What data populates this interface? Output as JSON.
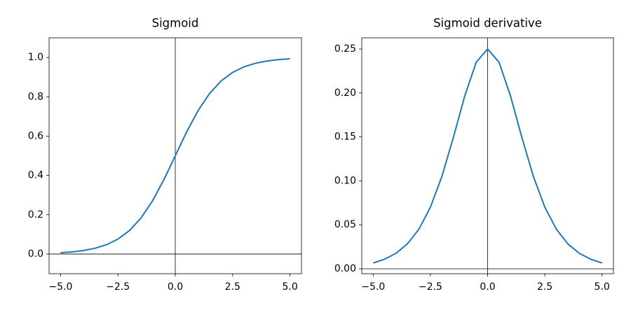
{
  "chart_data": [
    {
      "type": "line",
      "title": "Sigmoid",
      "x": [
        -5,
        -4.5,
        -4,
        -3.5,
        -3,
        -2.5,
        -2,
        -1.5,
        -1,
        -0.5,
        0,
        0.5,
        1,
        1.5,
        2,
        2.5,
        3,
        3.5,
        4,
        4.5,
        5
      ],
      "series": [
        {
          "color": "#1f77b4",
          "values": [
            0.0067,
            0.011,
            0.018,
            0.0293,
            0.0474,
            0.0759,
            0.1192,
            0.1824,
            0.2689,
            0.3775,
            0.5,
            0.6225,
            0.7311,
            0.8176,
            0.8808,
            0.9241,
            0.9526,
            0.9707,
            0.982,
            0.989,
            0.9933
          ]
        }
      ],
      "xlim": [
        -5.5,
        5.5
      ],
      "ylim": [
        -0.1,
        1.1
      ],
      "xticks": [
        {
          "value": -5,
          "label": "−5.0"
        },
        {
          "value": -2.5,
          "label": "−2.5"
        },
        {
          "value": 0,
          "label": "0.0"
        },
        {
          "value": 2.5,
          "label": "2.5"
        },
        {
          "value": 5,
          "label": "5.0"
        }
      ],
      "yticks": [
        {
          "value": 0,
          "label": "0.0"
        },
        0.2,
        0.4,
        0.6,
        0.8,
        {
          "value": 1,
          "label": "1.0"
        }
      ],
      "zero_lines": true,
      "grid": false
    },
    {
      "type": "line",
      "title": "Sigmoid derivative",
      "x": [
        -5,
        -4.5,
        -4,
        -3.5,
        -3,
        -2.5,
        -2,
        -1.5,
        -1,
        -0.5,
        0,
        0.5,
        1,
        1.5,
        2,
        2.5,
        3,
        3.5,
        4,
        4.5,
        5
      ],
      "series": [
        {
          "color": "#1f77b4",
          "values": [
            0.0066,
            0.0109,
            0.0177,
            0.0285,
            0.0452,
            0.0701,
            0.105,
            0.1491,
            0.1966,
            0.235,
            0.25,
            0.235,
            0.1966,
            0.1491,
            0.105,
            0.0701,
            0.0452,
            0.0285,
            0.0177,
            0.0109,
            0.0066
          ]
        }
      ],
      "xlim": [
        -5.5,
        5.5
      ],
      "ylim": [
        -0.0056,
        0.2628
      ],
      "xticks": [
        {
          "value": -5,
          "label": "−5.0"
        },
        {
          "value": -2.5,
          "label": "−2.5"
        },
        {
          "value": 0,
          "label": "0.0"
        },
        {
          "value": 2.5,
          "label": "2.5"
        },
        {
          "value": 5,
          "label": "5.0"
        }
      ],
      "yticks": [
        {
          "value": 0,
          "label": "0.00"
        },
        {
          "value": 0.05,
          "label": "0.05"
        },
        {
          "value": 0.1,
          "label": "0.10"
        },
        {
          "value": 0.15,
          "label": "0.15"
        },
        {
          "value": 0.2,
          "label": "0.20"
        },
        {
          "value": 0.25,
          "label": "0.25"
        }
      ],
      "zero_lines": true,
      "grid": false
    }
  ]
}
